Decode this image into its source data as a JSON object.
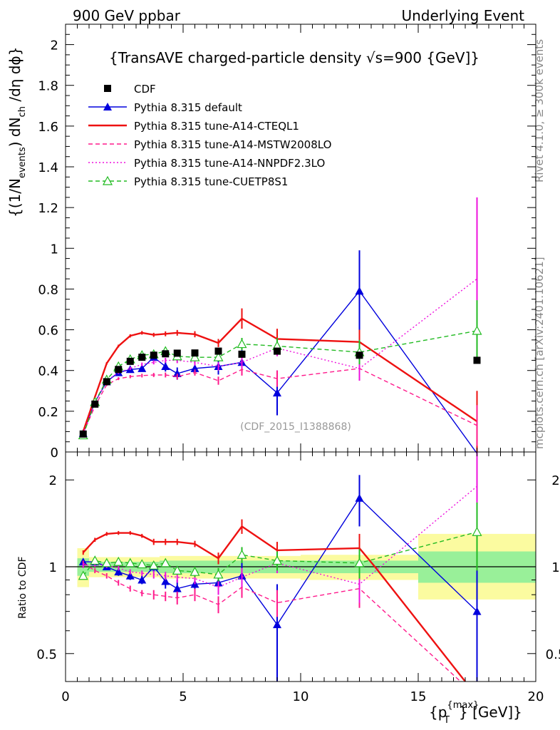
{
  "header": {
    "left": "900 GeV ppbar",
    "right": "Underlying Event"
  },
  "side_labels": {
    "rivet": "Rivet 4.1.0, ≥ 300k events",
    "mcplots": "mcplots.cern.ch [arXiv:2401.10621]"
  },
  "colors": {
    "data": "#000000",
    "default": "#0000dd",
    "cteq": "#ee1111",
    "mstw": "#ff1a8c",
    "nnpdf": "#ee11dd",
    "cuetp": "#22bb22",
    "band_inner": "#99f099",
    "band_outer": "#fbfba0"
  },
  "chart_data": [
    {
      "type": "line",
      "title": "{TransAVE charged-particle density √s=900 {GeV]}",
      "ylabel_main": "{(1/N",
      "ylabel_events": "events",
      "ylabel_mid": ") dN",
      "ylabel_ch": "ch",
      "ylabel_tail": " /dη dϕ}",
      "watermark": "(CDF_2015_I1388868)",
      "xlim": [
        0,
        20
      ],
      "ylim": [
        0,
        2.1
      ],
      "yticks": [
        {
          "v": 0,
          "label": "0"
        },
        {
          "v": 0.2,
          "label": "0.2"
        },
        {
          "v": 0.4,
          "label": "0.4"
        },
        {
          "v": 0.6,
          "label": "0.6"
        },
        {
          "v": 0.8,
          "label": "0.8"
        },
        {
          "v": 1.0,
          "label": "1"
        },
        {
          "v": 1.2,
          "label": "1.2"
        },
        {
          "v": 1.4,
          "label": "1.4"
        },
        {
          "v": 1.6,
          "label": "1.6"
        },
        {
          "v": 1.8,
          "label": "1.8"
        },
        {
          "v": 2.0,
          "label": "2"
        }
      ],
      "data": {
        "name": "CDF",
        "x": [
          0.75,
          1.25,
          1.75,
          2.25,
          2.75,
          3.25,
          3.75,
          4.25,
          4.75,
          5.5,
          6.5,
          7.5,
          9.0,
          12.5,
          17.5
        ],
        "y": [
          0.088,
          0.235,
          0.345,
          0.405,
          0.445,
          0.465,
          0.475,
          0.482,
          0.485,
          0.486,
          0.495,
          0.48,
          0.495,
          0.475,
          0.45
        ],
        "yerr": [
          0.005,
          0.006,
          0.006,
          0.007,
          0.008,
          0.008,
          0.009,
          0.009,
          0.01,
          0.01,
          0.012,
          0.014,
          0.02,
          0.025,
          0.02
        ]
      },
      "series": [
        {
          "name": "Pythia 8.315 default",
          "key": "default",
          "style": "solid",
          "marker": "triangle-filled",
          "x": [
            0.75,
            1.25,
            1.75,
            2.25,
            2.75,
            3.25,
            3.75,
            4.25,
            4.75,
            5.5,
            6.5,
            7.5,
            9.0,
            12.5,
            17.5
          ],
          "y": [
            0.092,
            0.245,
            0.345,
            0.39,
            0.405,
            0.41,
            0.465,
            0.42,
            0.385,
            0.41,
            0.42,
            0.44,
            0.29,
            0.79,
            0.0
          ],
          "yerr": [
            0.005,
            0.008,
            0.01,
            0.012,
            0.014,
            0.016,
            0.02,
            0.025,
            0.03,
            0.03,
            0.04,
            0.06,
            0.11,
            0.2,
            0.0
          ]
        },
        {
          "name": "Pythia 8.315 tune-A14-CTEQL1",
          "key": "cteq",
          "style": "solid",
          "marker": "none",
          "x": [
            0.75,
            1.25,
            1.75,
            2.25,
            2.75,
            3.25,
            3.75,
            4.25,
            4.75,
            5.5,
            6.5,
            7.5,
            9.0,
            12.5,
            17.5
          ],
          "y": [
            0.1,
            0.27,
            0.435,
            0.52,
            0.57,
            0.585,
            0.575,
            0.58,
            0.585,
            0.578,
            0.535,
            0.655,
            0.555,
            0.54,
            0.15
          ],
          "yerr": [
            0.004,
            0.005,
            0.006,
            0.007,
            0.008,
            0.009,
            0.01,
            0.012,
            0.014,
            0.015,
            0.02,
            0.05,
            0.05,
            0.06,
            0.15
          ]
        },
        {
          "name": "Pythia 8.315 tune-A14-MSTW2008LO",
          "key": "mstw",
          "style": "dashed",
          "marker": "none",
          "x": [
            0.75,
            1.25,
            1.75,
            2.25,
            2.75,
            3.25,
            3.75,
            4.25,
            4.75,
            5.5,
            6.5,
            7.5,
            9.0,
            12.5,
            17.5
          ],
          "y": [
            0.092,
            0.225,
            0.33,
            0.36,
            0.37,
            0.375,
            0.378,
            0.378,
            0.37,
            0.39,
            0.35,
            0.405,
            0.36,
            0.41,
            0.13
          ],
          "yerr": [
            0.004,
            0.005,
            0.006,
            0.007,
            0.008,
            0.009,
            0.01,
            0.012,
            0.014,
            0.015,
            0.02,
            0.03,
            0.04,
            0.06,
            0.1
          ]
        },
        {
          "name": "Pythia 8.315 tune-A14-NNPDF2.3LO",
          "key": "nnpdf",
          "style": "dotted",
          "marker": "none",
          "x": [
            0.75,
            1.25,
            1.75,
            2.25,
            2.75,
            3.25,
            3.75,
            4.25,
            4.75,
            5.5,
            6.5,
            7.5,
            9.0,
            12.5,
            17.5
          ],
          "y": [
            0.09,
            0.24,
            0.35,
            0.39,
            0.41,
            0.43,
            0.44,
            0.45,
            0.45,
            0.44,
            0.42,
            0.44,
            0.51,
            0.41,
            0.85
          ],
          "yerr": [
            0.004,
            0.005,
            0.006,
            0.007,
            0.008,
            0.009,
            0.01,
            0.012,
            0.014,
            0.015,
            0.02,
            0.03,
            0.04,
            0.06,
            0.4
          ]
        },
        {
          "name": "Pythia 8.315 tune-CUETP8S1",
          "key": "cuetp",
          "style": "dashed",
          "marker": "triangle-open",
          "x": [
            0.75,
            1.25,
            1.75,
            2.25,
            2.75,
            3.25,
            3.75,
            4.25,
            4.75,
            5.5,
            6.5,
            7.5,
            9.0,
            12.5,
            17.5
          ],
          "y": [
            0.082,
            0.245,
            0.355,
            0.42,
            0.455,
            0.475,
            0.48,
            0.495,
            0.47,
            0.465,
            0.465,
            0.53,
            0.52,
            0.49,
            0.595
          ],
          "yerr": [
            0.004,
            0.005,
            0.006,
            0.007,
            0.008,
            0.009,
            0.01,
            0.012,
            0.014,
            0.015,
            0.02,
            0.03,
            0.04,
            0.06,
            0.15
          ]
        }
      ]
    },
    {
      "type": "line",
      "ylabel": "Ratio to CDF",
      "xlabel_main": "{p",
      "xlabel_sup": "{max}",
      "xlabel_sub": "T",
      "xlabel_tail": "} [GeV]}",
      "xlim": [
        0,
        20
      ],
      "ylim": [
        0.4,
        2.5
      ],
      "yscale": "log",
      "xticks": [
        {
          "v": 0,
          "label": "0"
        },
        {
          "v": 5,
          "label": "5"
        },
        {
          "v": 10,
          "label": "10"
        },
        {
          "v": 15,
          "label": "15"
        },
        {
          "v": 20,
          "label": "20"
        }
      ],
      "yticks": [
        {
          "v": 0.5,
          "label": "0.5"
        },
        {
          "v": 1,
          "label": "1"
        },
        {
          "v": 2,
          "label": "2"
        }
      ],
      "bands": [
        {
          "x0": 0.5,
          "x1": 1.0,
          "inner": [
            0.93,
            1.07
          ],
          "outer": [
            0.85,
            1.16
          ]
        },
        {
          "x0": 1.0,
          "x1": 4.0,
          "inner": [
            0.96,
            1.04
          ],
          "outer": [
            0.92,
            1.08
          ]
        },
        {
          "x0": 4.0,
          "x1": 10.0,
          "inner": [
            0.95,
            1.05
          ],
          "outer": [
            0.91,
            1.09
          ]
        },
        {
          "x0": 10.0,
          "x1": 15.0,
          "inner": [
            0.95,
            1.05
          ],
          "outer": [
            0.9,
            1.1
          ]
        },
        {
          "x0": 15.0,
          "x1": 20.0,
          "inner": [
            0.88,
            1.13
          ],
          "outer": [
            0.77,
            1.3
          ]
        }
      ],
      "ratio_series": [
        {
          "key": "default",
          "style": "solid",
          "marker": "triangle-filled",
          "x": [
            0.75,
            1.25,
            1.75,
            2.25,
            2.75,
            3.25,
            3.75,
            4.25,
            4.75,
            5.5,
            6.5,
            7.5,
            9.0,
            12.5,
            17.5
          ],
          "y": [
            1.04,
            1.04,
            1.0,
            0.96,
            0.93,
            0.9,
            1.0,
            0.89,
            0.84,
            0.87,
            0.88,
            0.93,
            0.63,
            1.73,
            0.7
          ],
          "yerr": [
            0.02,
            0.02,
            0.02,
            0.03,
            0.03,
            0.03,
            0.04,
            0.05,
            0.06,
            0.06,
            0.08,
            0.12,
            0.24,
            0.35,
            0.35
          ]
        },
        {
          "key": "cteq",
          "style": "solid",
          "marker": "none",
          "x": [
            0.75,
            1.25,
            1.75,
            2.25,
            2.75,
            3.25,
            3.75,
            4.25,
            4.75,
            5.5,
            6.5,
            7.5,
            9.0,
            12.5,
            13.2,
            17.0
          ],
          "y": [
            1.12,
            1.24,
            1.3,
            1.31,
            1.31,
            1.28,
            1.22,
            1.22,
            1.22,
            1.2,
            1.07,
            1.38,
            1.14,
            1.16,
            0.99,
            0.4
          ],
          "yerr": [
            0.02,
            0.02,
            0.02,
            0.02,
            0.02,
            0.02,
            0.03,
            0.03,
            0.03,
            0.03,
            0.05,
            0.08,
            0.08,
            0.14,
            0,
            0
          ]
        },
        {
          "key": "mstw",
          "style": "dashed",
          "marker": "none",
          "x": [
            0.75,
            1.25,
            1.75,
            2.25,
            2.75,
            3.25,
            3.75,
            4.25,
            4.75,
            5.5,
            6.5,
            7.5,
            9.0,
            12.5,
            16.8
          ],
          "y": [
            1.03,
            0.97,
            0.93,
            0.88,
            0.84,
            0.81,
            0.8,
            0.79,
            0.78,
            0.8,
            0.74,
            0.85,
            0.75,
            0.84,
            0.4
          ],
          "yerr": [
            0.02,
            0.02,
            0.02,
            0.02,
            0.02,
            0.02,
            0.03,
            0.03,
            0.04,
            0.04,
            0.05,
            0.07,
            0.08,
            0.12,
            0
          ]
        },
        {
          "key": "nnpdf",
          "style": "dotted",
          "marker": "none",
          "x": [
            0.75,
            1.25,
            1.75,
            2.25,
            2.75,
            3.25,
            3.75,
            4.25,
            4.75,
            5.5,
            6.5,
            7.5,
            9.0,
            12.5,
            17.5
          ],
          "y": [
            1.01,
            1.02,
            1.01,
            0.99,
            0.96,
            0.95,
            0.94,
            0.93,
            0.92,
            0.91,
            0.85,
            0.92,
            1.03,
            0.87,
            1.9
          ],
          "yerr": [
            0.02,
            0.02,
            0.02,
            0.02,
            0.02,
            0.02,
            0.03,
            0.03,
            0.04,
            0.04,
            0.05,
            0.07,
            0.08,
            0.12,
            0.6
          ]
        },
        {
          "key": "cuetp",
          "style": "dashed",
          "marker": "triangle-open",
          "x": [
            0.75,
            1.25,
            1.75,
            2.25,
            2.75,
            3.25,
            3.75,
            4.25,
            4.75,
            5.5,
            6.5,
            7.5,
            9.0,
            12.5,
            17.5
          ],
          "y": [
            0.93,
            1.05,
            1.03,
            1.04,
            1.03,
            1.02,
            1.01,
            1.03,
            0.97,
            0.96,
            0.94,
            1.1,
            1.05,
            1.03,
            1.32
          ],
          "yerr": [
            0.02,
            0.02,
            0.02,
            0.02,
            0.02,
            0.02,
            0.03,
            0.03,
            0.03,
            0.04,
            0.05,
            0.07,
            0.08,
            0.12,
            0.35
          ]
        }
      ]
    }
  ]
}
